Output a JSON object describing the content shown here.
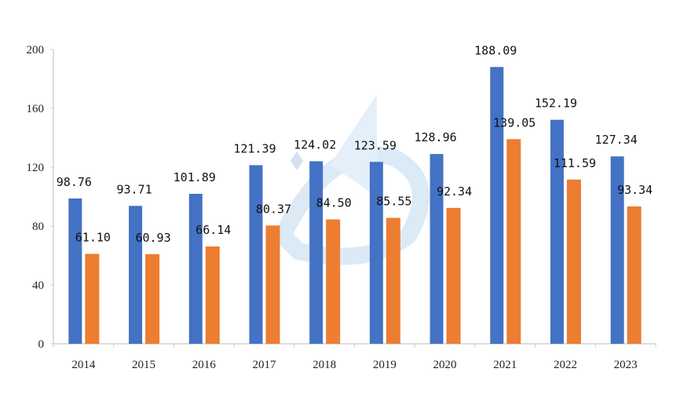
{
  "chart_data": {
    "type": "bar",
    "categories": [
      "2014",
      "2015",
      "2016",
      "2017",
      "2018",
      "2019",
      "2020",
      "2021",
      "2022",
      "2023"
    ],
    "series": [
      {
        "values": [
          98.76,
          93.71,
          101.89,
          121.39,
          124.02,
          123.59,
          128.96,
          188.09,
          152.19,
          127.34
        ],
        "labels": [
          "98.76",
          "93.71",
          "101.89",
          "121.39",
          "124.02",
          "123.59",
          "128.96",
          "188.09",
          "152.19",
          "127.34"
        ]
      },
      {
        "values": [
          61.1,
          60.93,
          66.14,
          80.37,
          84.5,
          85.55,
          92.34,
          139.05,
          111.59,
          93.34
        ],
        "labels": [
          "61.10",
          "60.93",
          "66.14",
          "80.37",
          "84.50",
          "85.55",
          "92.34",
          "139.05",
          "111.59",
          "93.34"
        ]
      }
    ],
    "colors": [
      "#4472C4",
      "#ED7D31"
    ],
    "yticks": [
      "0",
      "40",
      "80",
      "120",
      "160",
      "200"
    ],
    "ylim": [
      0,
      200
    ],
    "grid": false,
    "legend": "none",
    "title": "",
    "xlabel": "",
    "ylabel": ""
  }
}
